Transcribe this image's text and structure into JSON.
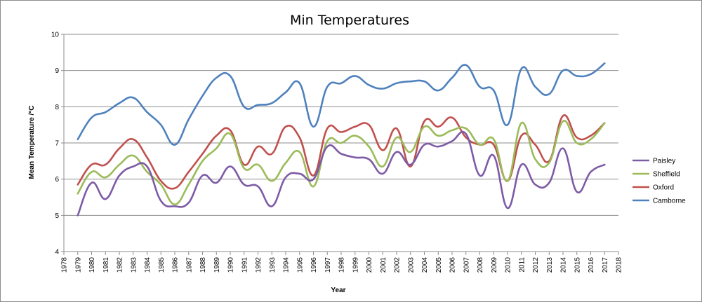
{
  "chart_data": {
    "type": "line",
    "title": "Min Temperatures",
    "xlabel": "Year",
    "ylabel": "Mean Temperature /°C",
    "xlim": [
      1978,
      2018
    ],
    "ylim": [
      4,
      10
    ],
    "x_ticks": [
      "1978",
      "1979",
      "1980",
      "1981",
      "1982",
      "1983",
      "1984",
      "1985",
      "1986",
      "1987",
      "1988",
      "1989",
      "1990",
      "1991",
      "1992",
      "1993",
      "1994",
      "1995",
      "1996",
      "1997",
      "1998",
      "1999",
      "2000",
      "2001",
      "2002",
      "2003",
      "2004",
      "2005",
      "2006",
      "2007",
      "2008",
      "2009",
      "2010",
      "2011",
      "2012",
      "2013",
      "2014",
      "2015",
      "2016",
      "2017",
      "2018"
    ],
    "y_ticks": [
      "4",
      "5",
      "6",
      "7",
      "8",
      "9",
      "10"
    ],
    "grid": "horizontal",
    "legend_position": "right",
    "x": [
      1979,
      1980,
      1981,
      1982,
      1983,
      1984,
      1985,
      1986,
      1987,
      1988,
      1989,
      1990,
      1991,
      1992,
      1993,
      1994,
      1995,
      1996,
      1997,
      1998,
      1999,
      2000,
      2001,
      2002,
      2003,
      2004,
      2005,
      2006,
      2007,
      2008,
      2009,
      2010,
      2011,
      2012,
      2013,
      2014,
      2015,
      2016,
      2017
    ],
    "series": [
      {
        "name": "Paisley",
        "color": "#7d5ba6",
        "values": [
          5.0,
          5.9,
          5.45,
          6.1,
          6.35,
          6.35,
          5.4,
          5.25,
          5.35,
          6.1,
          5.9,
          6.35,
          5.85,
          5.8,
          5.25,
          6.05,
          6.15,
          6.0,
          6.9,
          6.7,
          6.6,
          6.55,
          6.15,
          6.75,
          6.4,
          6.95,
          6.9,
          7.05,
          7.25,
          6.1,
          6.65,
          5.2,
          6.4,
          5.85,
          5.9,
          6.85,
          5.65,
          6.2,
          6.4
        ]
      },
      {
        "name": "Sheffield",
        "color": "#9bbb59",
        "values": [
          5.6,
          6.2,
          6.05,
          6.4,
          6.65,
          6.2,
          5.85,
          5.3,
          5.85,
          6.5,
          6.85,
          7.25,
          6.3,
          6.4,
          5.95,
          6.45,
          6.75,
          5.8,
          7.05,
          7.0,
          7.2,
          6.9,
          6.35,
          7.15,
          6.75,
          7.45,
          7.2,
          7.35,
          7.4,
          6.95,
          7.1,
          5.95,
          7.55,
          6.55,
          6.45,
          7.6,
          7.0,
          7.1,
          7.55
        ]
      },
      {
        "name": "Oxford",
        "color": "#c0504d",
        "values": [
          5.85,
          6.4,
          6.4,
          6.85,
          7.1,
          6.6,
          5.95,
          5.75,
          6.2,
          6.7,
          7.2,
          7.35,
          6.4,
          6.9,
          6.7,
          7.45,
          7.15,
          6.1,
          7.4,
          7.3,
          7.45,
          7.5,
          6.8,
          7.4,
          6.35,
          7.6,
          7.45,
          7.7,
          7.15,
          6.95,
          6.95,
          5.95,
          7.2,
          6.95,
          6.5,
          7.75,
          7.15,
          7.2,
          7.55
        ]
      },
      {
        "name": "Camborne",
        "color": "#4f81bd",
        "values": [
          7.1,
          7.7,
          7.85,
          8.1,
          8.25,
          7.85,
          7.5,
          6.95,
          7.65,
          8.3,
          8.8,
          8.85,
          8.0,
          8.05,
          8.1,
          8.4,
          8.65,
          7.45,
          8.55,
          8.65,
          8.85,
          8.6,
          8.5,
          8.65,
          8.7,
          8.7,
          8.45,
          8.8,
          9.15,
          8.55,
          8.45,
          7.5,
          9.05,
          8.55,
          8.35,
          9.0,
          8.85,
          8.9,
          9.2
        ]
      }
    ]
  }
}
